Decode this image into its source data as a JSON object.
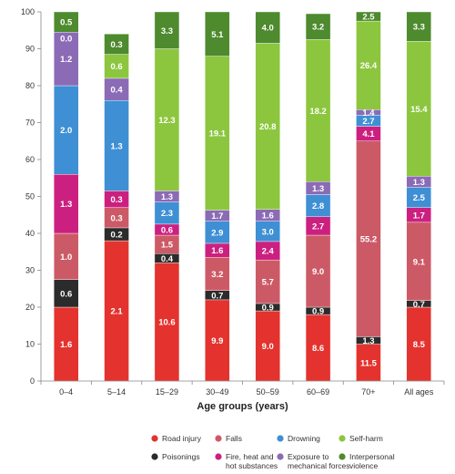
{
  "chart_data": {
    "type": "bar",
    "stacked": true,
    "xlabel": "Age groups (years)",
    "ylabel": "",
    "ylim": [
      0,
      100
    ],
    "yticks": [
      0,
      10,
      20,
      30,
      40,
      50,
      60,
      70,
      80,
      90,
      100
    ],
    "grid": false,
    "legend_position": "bottom",
    "categories": [
      "0–4",
      "5–14",
      "15–29",
      "30–49",
      "50–59",
      "60–69",
      "70+",
      "All ages"
    ],
    "series": [
      {
        "name": "Road injury",
        "color": "#e4322e",
        "values": [
          20,
          38,
          32,
          22,
          19,
          18,
          10,
          20
        ],
        "labels": [
          "1.6",
          "2.1",
          "10.6",
          "9.9",
          "9.0",
          "8.6",
          "11.5",
          "8.5"
        ]
      },
      {
        "name": "Poisonings",
        "color": "#2b2b2b",
        "values": [
          7.5,
          3.5,
          2.5,
          2.5,
          2,
          2,
          2,
          1.8
        ],
        "labels": [
          "0.6",
          "0.2",
          "0.4",
          "0.7",
          "0.9",
          "0.9",
          "1.3",
          "0.7"
        ]
      },
      {
        "name": "Falls",
        "color": "#cc5a66",
        "values": [
          12.5,
          5.5,
          5,
          9,
          11.8,
          19.5,
          53,
          21.2
        ],
        "labels": [
          "1.0",
          "0.3",
          "1.5",
          "3.2",
          "5.7",
          "9.0",
          "55.2",
          "9.1"
        ]
      },
      {
        "name": "Fire, heat and hot substances",
        "color": "#cc2080",
        "values": [
          16,
          4.5,
          3,
          3.8,
          5,
          5,
          4,
          4
        ],
        "labels": [
          "1.3",
          "0.3",
          "0.6",
          "1.6",
          "2.4",
          "2.7",
          "4.1",
          "1.7"
        ]
      },
      {
        "name": "Drowning",
        "color": "#3f8fd4",
        "values": [
          24,
          24.5,
          6,
          6,
          5.5,
          6,
          3,
          5.5
        ],
        "labels": [
          "2.0",
          "1.3",
          "2.3",
          "2.9",
          "3.0",
          "2.8",
          "2.7",
          "2.5"
        ]
      },
      {
        "name": "Exposure to mechanical forces",
        "color": "#8b6bb5",
        "values": [
          14.5,
          6,
          3,
          3,
          3.2,
          3.5,
          1.5,
          3
        ],
        "labels": [
          "1.2",
          "0.4",
          "1.3",
          "1.7",
          "1.6",
          "1.3",
          "1.4",
          "1.3"
        ]
      },
      {
        "name": "Self-harm",
        "color": "#8cc63e",
        "values": [
          0,
          6.5,
          38.5,
          41.7,
          45,
          38.5,
          24,
          36.5
        ],
        "labels": [
          "0.0",
          "0.6",
          "12.3",
          "19.1",
          "20.8",
          "18.2",
          "26.4",
          "15.4"
        ]
      },
      {
        "name": "Interpersonal violence",
        "color": "#4e8a2e",
        "values": [
          5.5,
          5.5,
          10,
          12,
          8.5,
          7,
          2.5,
          8
        ],
        "labels": [
          "0.5",
          "0.3",
          "3.3",
          "5.1",
          "4.0",
          "3.2",
          "2.5",
          "3.3"
        ]
      }
    ],
    "legend_order": [
      "Road injury",
      "Falls",
      "Drowning",
      "Self-harm",
      "Poisonings",
      "Fire, heat and hot substances",
      "Exposure to mechanical forces",
      "Interpersonal violence"
    ],
    "legend_display": {
      "Road injury": [
        "Road injury"
      ],
      "Falls": [
        "Falls"
      ],
      "Drowning": [
        "Drowning"
      ],
      "Self-harm": [
        "Self-harm"
      ],
      "Poisonings": [
        "Poisonings"
      ],
      "Fire, heat and hot substances": [
        "Fire, heat and",
        "hot substances"
      ],
      "Exposure to mechanical forces": [
        "Exposure to",
        "mechanical forces"
      ],
      "Interpersonal violence": [
        "Interpersonal",
        "violence"
      ]
    }
  }
}
